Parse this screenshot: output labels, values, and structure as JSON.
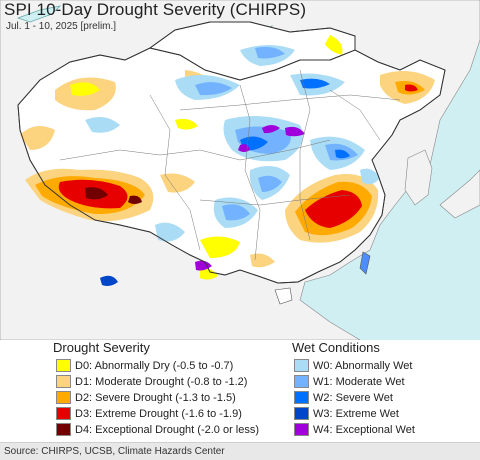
{
  "title": "SPI 10-Day Drought Severity (CHIRPS)",
  "subtitle": "Jul. 1 - 10, 2025 [prelim.]",
  "legend": {
    "drought_heading": "Drought Severity",
    "wet_heading": "Wet Conditions",
    "drought": [
      {
        "label": "D0: Abnormally Dry (-0.5 to -0.7)",
        "color": "#ffff00"
      },
      {
        "label": "D1: Moderate Drought (-0.8 to -1.2)",
        "color": "#fcd37f"
      },
      {
        "label": "D2: Severe Drought (-1.3 to -1.5)",
        "color": "#ffaa00"
      },
      {
        "label": "D3: Extreme Drought (-1.6 to -1.9)",
        "color": "#e60000"
      },
      {
        "label": "D4: Exceptional Drought (-2.0 or less)",
        "color": "#730000"
      }
    ],
    "wet": [
      {
        "label": "W0: Abnormally Wet",
        "color": "#aadcf5"
      },
      {
        "label": "W1: Moderate Wet",
        "color": "#73b2ff"
      },
      {
        "label": "W2: Severe Wet",
        "color": "#0070ff"
      },
      {
        "label": "W3: Extreme Wet",
        "color": "#0046c8"
      },
      {
        "label": "W4: Exceptional Wet",
        "color": "#a000dc"
      }
    ]
  },
  "source": "Source: CHIRPS, UCSB, Climate Hazards Center",
  "map_colors": {
    "ocean": "#cfeff3",
    "land_outside": "#f2f2f2",
    "land_normal": "#ffffff",
    "border": "#555555"
  }
}
